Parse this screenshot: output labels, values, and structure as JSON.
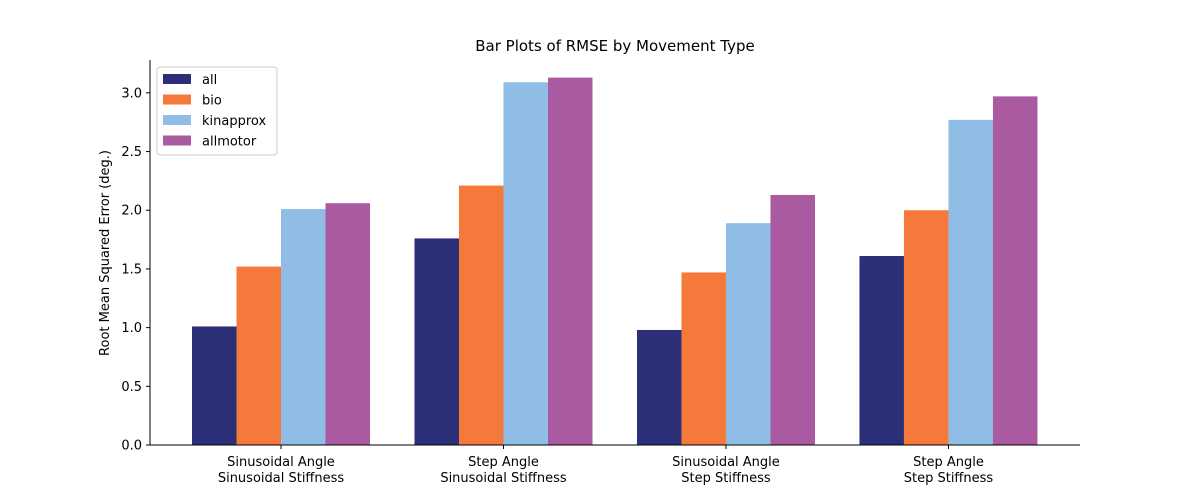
{
  "chart_data": {
    "type": "bar",
    "title": "Bar Plots of RMSE by Movement Type",
    "xlabel": "",
    "ylabel": "Root Mean Squared Error (deg.)",
    "ylim": [
      0,
      3.28
    ],
    "yticks": [
      "0.0",
      "0.5",
      "1.0",
      "1.5",
      "2.0",
      "2.5",
      "3.0"
    ],
    "grid": false,
    "legend_position": "top-left",
    "categories": [
      [
        "Sinusoidal Angle",
        "Sinusoidal Stiffness"
      ],
      [
        "Step Angle",
        "Sinusoidal Stiffness"
      ],
      [
        "Sinusoidal Angle",
        "Step Stiffness"
      ],
      [
        "Step Angle",
        "Step Stiffness"
      ]
    ],
    "series": [
      {
        "name": "all",
        "color": "#2b2f77",
        "values": [
          1.01,
          1.76,
          0.98,
          1.61
        ]
      },
      {
        "name": "bio",
        "color": "#f5793a",
        "values": [
          1.52,
          2.21,
          1.47,
          2.0
        ]
      },
      {
        "name": "kinapprox",
        "color": "#8fbde6",
        "values": [
          2.01,
          3.09,
          1.89,
          2.77
        ]
      },
      {
        "name": "allmotor",
        "color": "#a95aa1",
        "values": [
          2.06,
          3.13,
          2.13,
          2.97
        ]
      }
    ]
  }
}
